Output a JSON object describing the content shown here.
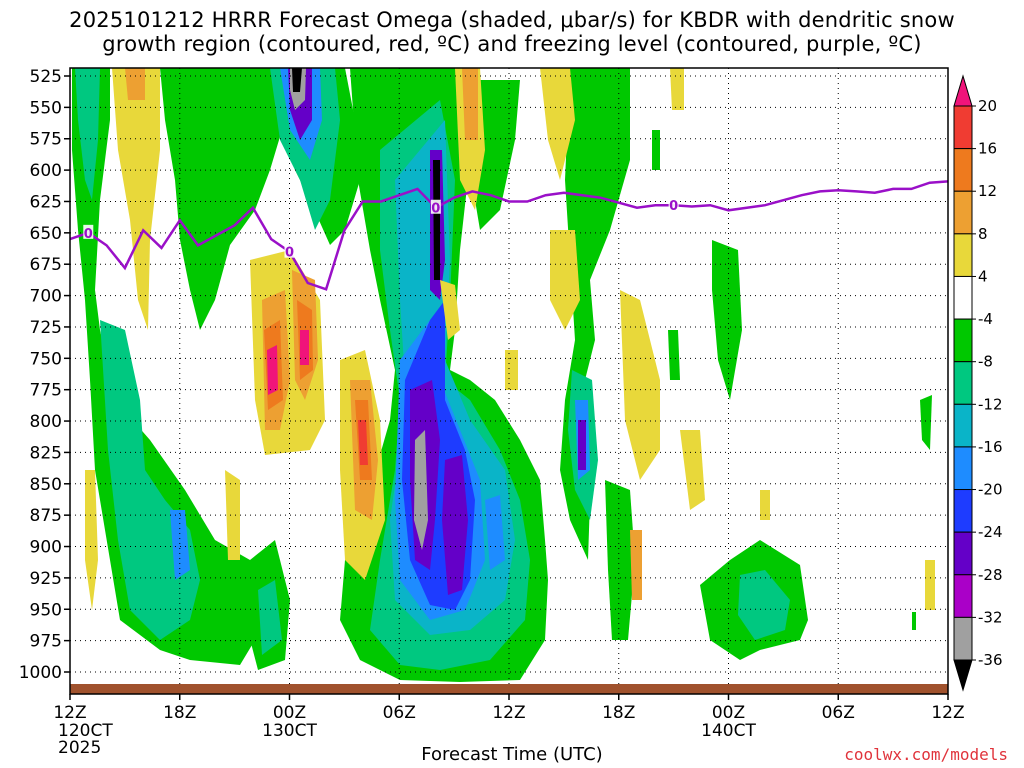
{
  "title": {
    "line1": "2025101212 HRRR Forecast Omega (shaded, μbar/s) for KBDR with dendritic snow",
    "line2": "growth region (contoured, red, ºC) and freezing level (contoured, purple, ºC)"
  },
  "credit": "coolwx.com/models",
  "colors": {
    "freezing_level": "#9a10c8",
    "ground": "#a0522d",
    "credit": "#e0333b"
  },
  "chart_data": {
    "type": "heatmap",
    "xlabel": "Forecast Time (UTC)",
    "ylabel": "",
    "x_ticks": [
      "12Z",
      "18Z",
      "00Z",
      "06Z",
      "12Z",
      "18Z",
      "00Z",
      "06Z",
      "12Z"
    ],
    "x_tick_hours": [
      0,
      6,
      12,
      18,
      24,
      30,
      36,
      42,
      48
    ],
    "x_date_labels": [
      {
        "hour": 0,
        "lines": [
          "120CT",
          "2025"
        ]
      },
      {
        "hour": 12,
        "lines": [
          "130CT"
        ]
      },
      {
        "hour": 36,
        "lines": [
          "140CT"
        ]
      }
    ],
    "xlim": [
      0,
      48
    ],
    "y_ticks": [
      525,
      550,
      575,
      600,
      625,
      650,
      675,
      700,
      725,
      750,
      775,
      800,
      825,
      850,
      875,
      900,
      925,
      950,
      975,
      1000
    ],
    "ylim": [
      1025,
      520
    ],
    "y_unit": "hPa",
    "grid": true,
    "colorbar": {
      "labels": [
        "20",
        "16",
        "12",
        "8",
        "4",
        "-4",
        "-8",
        "-12",
        "-16",
        "-20",
        "-24",
        "-28",
        "-32",
        "-36"
      ],
      "colors": [
        "#f0147a",
        "#f03c32",
        "#ee7a1e",
        "#eda032",
        "#e8d83a",
        "#ffffff",
        "#00c800",
        "#00c880",
        "#0ab4c8",
        "#1e8cff",
        "#1e3cff",
        "#6400c8",
        "#aa00c8",
        "#a0a0a0",
        "#000000"
      ]
    },
    "freezing_level_contour": {
      "label": "0",
      "hours": [
        0,
        1,
        2,
        3,
        4,
        5,
        6,
        7,
        8,
        9,
        10,
        11,
        12,
        13,
        14,
        15,
        16,
        17,
        18,
        19,
        20,
        21,
        22,
        23,
        24,
        25,
        26,
        27,
        28,
        29,
        30,
        31,
        32,
        33,
        34,
        35,
        36,
        37,
        38,
        39,
        40,
        41,
        42,
        43,
        44,
        45,
        46,
        47,
        48
      ],
      "pressure_hpa": [
        655,
        650,
        660,
        678,
        648,
        662,
        640,
        660,
        652,
        644,
        630,
        655,
        665,
        690,
        695,
        648,
        625,
        625,
        620,
        615,
        630,
        622,
        617,
        620,
        625,
        625,
        620,
        618,
        620,
        622,
        626,
        630,
        628,
        628,
        629,
        628,
        632,
        630,
        628,
        624,
        620,
        617,
        616,
        617,
        618,
        615,
        615,
        610,
        609
      ]
    },
    "omega_regions": [
      {
        "value": -8,
        "x": [
          0.2,
          1.2
        ],
        "y": [
          520,
          660
        ]
      },
      {
        "value": -12,
        "x": [
          2.5,
          6.5
        ],
        "y": [
          690,
          990
        ]
      },
      {
        "value": -16,
        "x": [
          5.5,
          6.3
        ],
        "y": [
          820,
          940
        ]
      },
      {
        "value": -30,
        "x": [
          11.8,
          12.5
        ],
        "y": [
          522,
          545
        ]
      },
      {
        "value": -36,
        "x": [
          11.8,
          12.2
        ],
        "y": [
          522,
          538
        ]
      },
      {
        "value": 12,
        "x": [
          10.2,
          11.6
        ],
        "y": [
          650,
          760
        ]
      },
      {
        "value": 12,
        "x": [
          11.5,
          12.8
        ],
        "y": [
          650,
          760
        ]
      },
      {
        "value": 16,
        "x": [
          15.5,
          16.8
        ],
        "y": [
          720,
          820
        ]
      },
      {
        "value": -24,
        "x": [
          18.5,
          20.5
        ],
        "y": [
          740,
          960
        ]
      },
      {
        "value": -28,
        "x": [
          20.8,
          22.6
        ],
        "y": [
          790,
          930
        ]
      },
      {
        "value": -32,
        "x": [
          19.2,
          19.8
        ],
        "y": [
          770,
          900
        ]
      },
      {
        "value": -36,
        "x": [
          19.8,
          20.4
        ],
        "y": [
          570,
          650
        ]
      },
      {
        "value": -16,
        "x": [
          23.5,
          25.0
        ],
        "y": [
          820,
          900
        ]
      },
      {
        "value": -16,
        "x": [
          28.0,
          29.2
        ],
        "y": [
          740,
          840
        ]
      },
      {
        "value": -8,
        "x": [
          34.5,
          40.0
        ],
        "y": [
          870,
          990
        ]
      }
    ],
    "ground_level_hpa": 1020
  }
}
